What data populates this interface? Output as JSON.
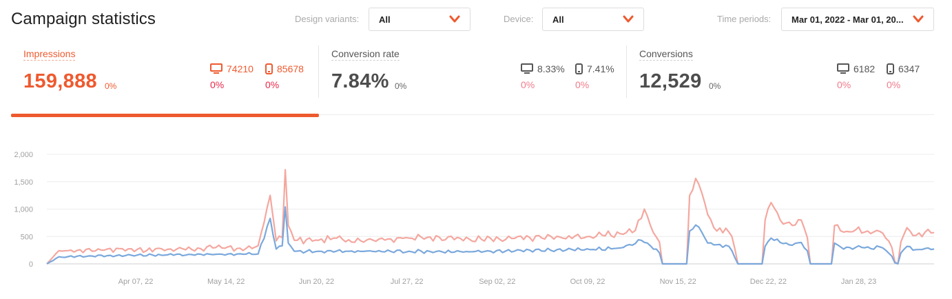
{
  "page": {
    "title": "Campaign statistics"
  },
  "filters": {
    "design_variants": {
      "label": "Design variants:",
      "value": "All"
    },
    "device": {
      "label": "Device:",
      "value": "All"
    },
    "time_periods": {
      "label": "Time periods:",
      "value": "Mar 01, 2022 - Mar 01, 20..."
    }
  },
  "metrics": [
    {
      "title": "Impressions",
      "value": "159,888",
      "change": "0%",
      "desktop": {
        "icon": "desktop-icon",
        "value": "74210",
        "change": "0%"
      },
      "mobile": {
        "icon": "mobile-icon",
        "value": "85678",
        "change": "0%"
      }
    },
    {
      "title": "Conversion rate",
      "value": "7.84%",
      "change": "0%",
      "desktop": {
        "icon": "desktop-icon",
        "value": "8.33%",
        "change": "0%"
      },
      "mobile": {
        "icon": "mobile-icon",
        "value": "7.41%",
        "change": "0%"
      }
    },
    {
      "title": "Conversions",
      "value": "12,529",
      "change": "0%",
      "desktop": {
        "icon": "desktop-icon",
        "value": "6182",
        "change": "0%"
      },
      "mobile": {
        "icon": "mobile-icon",
        "value": "6347",
        "change": "0%"
      }
    }
  ],
  "colors": {
    "accent": "#ee5a2f",
    "series_total": "#f4a79f",
    "series_desktop": "#7aa8dc",
    "negative": "#e8294b"
  },
  "chart_data": {
    "type": "line",
    "yticks": [
      "2,000",
      "1,500",
      "1,000",
      "500",
      "0"
    ],
    "ylim": [
      0,
      2000
    ],
    "xticks": [
      "Apr 07, 22",
      "May 14, 22",
      "Jun 20, 22",
      "Jul 27, 22",
      "Sep 02, 22",
      "Oct 09, 22",
      "Nov 15, 22",
      "Dec 22, 22",
      "Jan 28, 23"
    ],
    "grid": true,
    "series": [
      {
        "anchors": [
          [
            0,
            0
          ],
          [
            4,
            240
          ],
          [
            10,
            245
          ],
          [
            20,
            270
          ],
          [
            30,
            265
          ],
          [
            40,
            265
          ],
          [
            50,
            290
          ],
          [
            59,
            285
          ],
          [
            68,
            280
          ],
          [
            70,
            330
          ],
          [
            74,
            1250
          ],
          [
            76,
            420
          ],
          [
            78,
            480
          ],
          [
            79,
            1720
          ],
          [
            80,
            700
          ],
          [
            82,
            430
          ],
          [
            90,
            430
          ],
          [
            95,
            470
          ],
          [
            100,
            440
          ],
          [
            110,
            450
          ],
          [
            120,
            470
          ],
          [
            130,
            490
          ],
          [
            140,
            450
          ],
          [
            150,
            450
          ],
          [
            160,
            480
          ],
          [
            170,
            490
          ],
          [
            180,
            500
          ],
          [
            190,
            550
          ],
          [
            195,
            610
          ],
          [
            198,
            1000
          ],
          [
            200,
            700
          ],
          [
            203,
            400
          ],
          [
            204,
            0
          ],
          [
            212,
            0
          ],
          [
            213,
            1250
          ],
          [
            215,
            1560
          ],
          [
            217,
            1300
          ],
          [
            219,
            900
          ],
          [
            222,
            600
          ],
          [
            225,
            650
          ],
          [
            227,
            500
          ],
          [
            229,
            0
          ],
          [
            237,
            0
          ],
          [
            238,
            800
          ],
          [
            240,
            1120
          ],
          [
            243,
            800
          ],
          [
            247,
            700
          ],
          [
            250,
            800
          ],
          [
            252,
            480
          ],
          [
            253,
            0
          ],
          [
            260,
            0
          ],
          [
            261,
            700
          ],
          [
            264,
            580
          ],
          [
            268,
            620
          ],
          [
            272,
            600
          ],
          [
            277,
            560
          ],
          [
            280,
            300
          ],
          [
            281,
            40
          ],
          [
            282,
            0
          ],
          [
            283,
            400
          ],
          [
            285,
            660
          ],
          [
            288,
            520
          ],
          [
            291,
            580
          ],
          [
            294,
            570
          ]
        ]
      },
      {
        "anchors": [
          [
            0,
            0
          ],
          [
            4,
            130
          ],
          [
            20,
            150
          ],
          [
            40,
            165
          ],
          [
            60,
            180
          ],
          [
            70,
            180
          ],
          [
            74,
            830
          ],
          [
            76,
            270
          ],
          [
            78,
            330
          ],
          [
            79,
            1040
          ],
          [
            80,
            380
          ],
          [
            82,
            230
          ],
          [
            100,
            230
          ],
          [
            120,
            230
          ],
          [
            140,
            220
          ],
          [
            160,
            250
          ],
          [
            180,
            260
          ],
          [
            190,
            290
          ],
          [
            197,
            430
          ],
          [
            200,
            330
          ],
          [
            203,
            200
          ],
          [
            204,
            0
          ],
          [
            212,
            0
          ],
          [
            213,
            600
          ],
          [
            215,
            710
          ],
          [
            217,
            580
          ],
          [
            219,
            380
          ],
          [
            222,
            350
          ],
          [
            225,
            340
          ],
          [
            227,
            240
          ],
          [
            229,
            0
          ],
          [
            237,
            0
          ],
          [
            238,
            320
          ],
          [
            240,
            470
          ],
          [
            243,
            390
          ],
          [
            247,
            340
          ],
          [
            250,
            390
          ],
          [
            252,
            240
          ],
          [
            253,
            0
          ],
          [
            260,
            0
          ],
          [
            261,
            380
          ],
          [
            264,
            270
          ],
          [
            268,
            300
          ],
          [
            272,
            310
          ],
          [
            277,
            290
          ],
          [
            280,
            140
          ],
          [
            281,
            20
          ],
          [
            282,
            0
          ],
          [
            283,
            200
          ],
          [
            285,
            320
          ],
          [
            288,
            260
          ],
          [
            291,
            280
          ],
          [
            294,
            270
          ]
        ]
      }
    ]
  }
}
